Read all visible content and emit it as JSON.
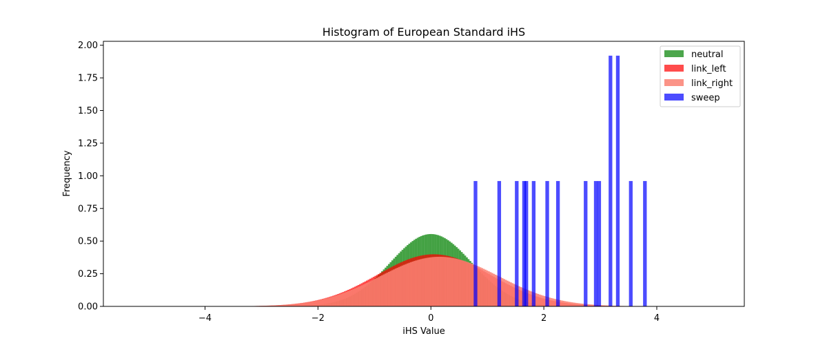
{
  "chart_data": {
    "type": "bar",
    "title": "Histogram of European Standard iHS",
    "xlabel": "iHS Value",
    "ylabel": "Frequency",
    "xlim": [
      -5.8,
      5.55
    ],
    "ylim": [
      0,
      2.03
    ],
    "xticks": [
      -4,
      -2,
      0,
      2,
      4
    ],
    "xtick_labels": [
      "−4",
      "−2",
      "0",
      "2",
      "4"
    ],
    "yticks": [
      0.0,
      0.25,
      0.5,
      0.75,
      1.0,
      1.25,
      1.5,
      1.75,
      2.0
    ],
    "ytick_labels": [
      "0.00",
      "0.25",
      "0.50",
      "0.75",
      "1.00",
      "1.25",
      "1.50",
      "1.75",
      "2.00"
    ],
    "grid": false,
    "legend_position": "top-right",
    "series": [
      {
        "name": "neutral",
        "color": "#008000",
        "alpha": 0.7,
        "kind": "normal_density",
        "mean": 0.0,
        "std": 0.72,
        "bin_width": 0.03,
        "xmin": -3.4,
        "xmax": 3.4
      },
      {
        "name": "link_left",
        "color": "#ff0000",
        "alpha": 0.7,
        "kind": "normal_density",
        "mean": 0.05,
        "std": 1.0,
        "bin_width": 0.03,
        "xmin": -3.4,
        "xmax": 3.7
      },
      {
        "name": "link_right",
        "color": "#fa8072",
        "alpha": 0.85,
        "kind": "normal_density",
        "mean": 0.15,
        "std": 1.05,
        "bin_width": 0.03,
        "xmin": -3.4,
        "xmax": 3.7
      },
      {
        "name": "sweep",
        "color": "#0000ff",
        "alpha": 0.7,
        "kind": "bars",
        "bin_width": 0.065,
        "bars": [
          {
            "x": 0.79,
            "value": 0.96
          },
          {
            "x": 1.21,
            "value": 0.96
          },
          {
            "x": 1.52,
            "value": 0.96
          },
          {
            "x": 1.65,
            "value": 0.96
          },
          {
            "x": 1.69,
            "value": 0.96
          },
          {
            "x": 1.82,
            "value": 0.96
          },
          {
            "x": 2.06,
            "value": 0.96
          },
          {
            "x": 2.25,
            "value": 0.96
          },
          {
            "x": 2.74,
            "value": 0.96
          },
          {
            "x": 2.92,
            "value": 0.96
          },
          {
            "x": 2.98,
            "value": 0.96
          },
          {
            "x": 3.18,
            "value": 1.92
          },
          {
            "x": 3.31,
            "value": 1.92
          },
          {
            "x": 3.54,
            "value": 0.96
          },
          {
            "x": 3.79,
            "value": 0.96
          }
        ]
      }
    ]
  }
}
